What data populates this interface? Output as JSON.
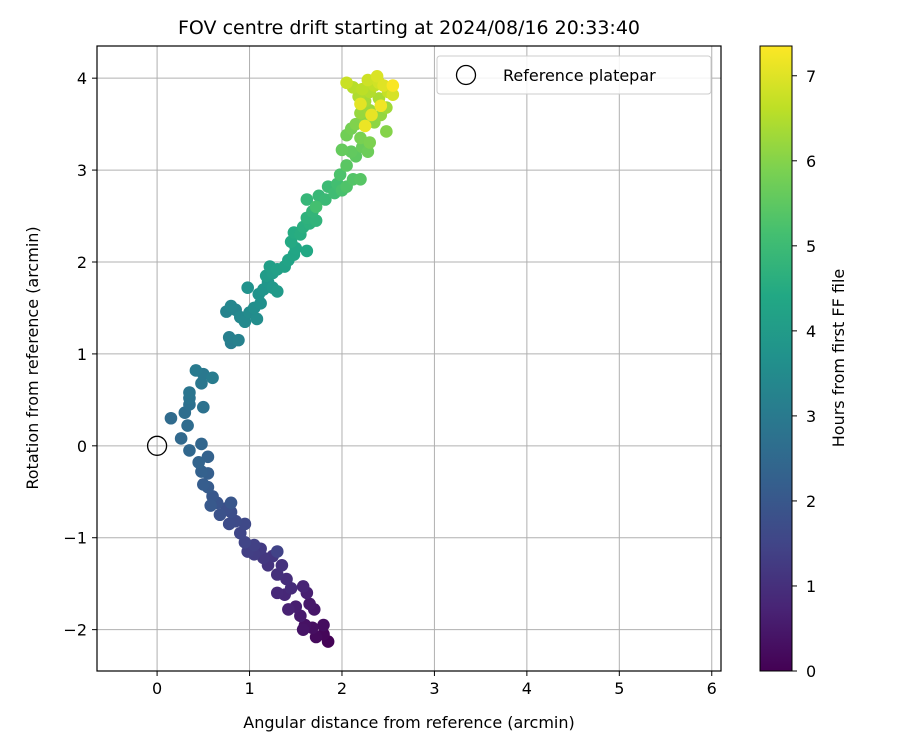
{
  "chart_data": {
    "type": "scatter",
    "title": "FOV centre drift starting at 2024/08/16 20:33:40",
    "xlabel": "Angular distance from reference (arcmin)",
    "ylabel": "Rotation from reference (arcmin)",
    "xlim": [
      -0.65,
      6.1
    ],
    "ylim": [
      -2.45,
      4.35
    ],
    "xticks": [
      0,
      1,
      2,
      3,
      4,
      5,
      6
    ],
    "yticks": [
      -2,
      -1,
      0,
      1,
      2,
      3,
      4
    ],
    "xtick_labels": [
      "0",
      "1",
      "2",
      "3",
      "4",
      "5",
      "6"
    ],
    "ytick_labels": [
      "−2",
      "−1",
      "0",
      "1",
      "2",
      "3",
      "4"
    ],
    "grid": true,
    "legend": {
      "placement": "top-right",
      "entries": [
        {
          "label": "Reference platepar",
          "marker": "open-circle"
        }
      ]
    },
    "reference_point": {
      "x": 0,
      "y": 0
    },
    "colorbar": {
      "label": "Hours from first FF file",
      "colormap": "viridis",
      "range": [
        0,
        7.35
      ],
      "ticks": [
        0,
        1,
        2,
        3,
        4,
        5,
        6,
        7
      ],
      "tick_labels": [
        "0",
        "1",
        "2",
        "3",
        "4",
        "5",
        "6",
        "7"
      ]
    },
    "points": [
      {
        "x": 1.85,
        "y": -2.13,
        "t": 0.05
      },
      {
        "x": 1.8,
        "y": -2.05,
        "t": 0.12
      },
      {
        "x": 1.72,
        "y": -2.08,
        "t": 0.18
      },
      {
        "x": 1.8,
        "y": -1.95,
        "t": 0.25
      },
      {
        "x": 1.68,
        "y": -1.98,
        "t": 0.3
      },
      {
        "x": 1.6,
        "y": -1.95,
        "t": 0.35
      },
      {
        "x": 1.58,
        "y": -2.0,
        "t": 0.4
      },
      {
        "x": 1.7,
        "y": -1.78,
        "t": 0.45
      },
      {
        "x": 1.65,
        "y": -1.72,
        "t": 0.5
      },
      {
        "x": 1.55,
        "y": -1.85,
        "t": 0.55
      },
      {
        "x": 1.5,
        "y": -1.75,
        "t": 0.6
      },
      {
        "x": 1.62,
        "y": -1.6,
        "t": 0.65
      },
      {
        "x": 1.42,
        "y": -1.78,
        "t": 0.7
      },
      {
        "x": 1.58,
        "y": -1.53,
        "t": 0.75
      },
      {
        "x": 1.38,
        "y": -1.62,
        "t": 0.8
      },
      {
        "x": 1.3,
        "y": -1.6,
        "t": 0.85
      },
      {
        "x": 1.45,
        "y": -1.55,
        "t": 0.9
      },
      {
        "x": 1.4,
        "y": -1.45,
        "t": 0.95
      },
      {
        "x": 1.3,
        "y": -1.4,
        "t": 1.0
      },
      {
        "x": 1.35,
        "y": -1.3,
        "t": 1.05
      },
      {
        "x": 1.2,
        "y": -1.3,
        "t": 1.1
      },
      {
        "x": 1.25,
        "y": -1.2,
        "t": 1.15
      },
      {
        "x": 1.15,
        "y": -1.22,
        "t": 1.2
      },
      {
        "x": 1.12,
        "y": -1.12,
        "t": 1.25
      },
      {
        "x": 1.05,
        "y": -1.18,
        "t": 1.3
      },
      {
        "x": 0.98,
        "y": -1.15,
        "t": 1.35
      },
      {
        "x": 1.05,
        "y": -1.08,
        "t": 1.4
      },
      {
        "x": 1.3,
        "y": -1.15,
        "t": 1.45
      },
      {
        "x": 0.95,
        "y": -1.05,
        "t": 1.5
      },
      {
        "x": 0.9,
        "y": -0.95,
        "t": 1.55
      },
      {
        "x": 0.95,
        "y": -0.85,
        "t": 1.6
      },
      {
        "x": 0.85,
        "y": -0.82,
        "t": 1.65
      },
      {
        "x": 0.78,
        "y": -0.85,
        "t": 1.7
      },
      {
        "x": 0.8,
        "y": -0.72,
        "t": 1.75
      },
      {
        "x": 0.75,
        "y": -0.68,
        "t": 1.8
      },
      {
        "x": 0.68,
        "y": -0.75,
        "t": 1.85
      },
      {
        "x": 0.65,
        "y": -0.62,
        "t": 1.9
      },
      {
        "x": 0.8,
        "y": -0.62,
        "t": 1.95
      },
      {
        "x": 0.6,
        "y": -0.55,
        "t": 2.0
      },
      {
        "x": 0.58,
        "y": -0.65,
        "t": 2.05
      },
      {
        "x": 0.55,
        "y": -0.45,
        "t": 2.1
      },
      {
        "x": 0.5,
        "y": -0.42,
        "t": 2.15
      },
      {
        "x": 0.55,
        "y": -0.3,
        "t": 2.2
      },
      {
        "x": 0.48,
        "y": -0.28,
        "t": 2.25
      },
      {
        "x": 0.55,
        "y": -0.12,
        "t": 2.3
      },
      {
        "x": 0.45,
        "y": -0.18,
        "t": 2.35
      },
      {
        "x": 0.48,
        "y": 0.02,
        "t": 2.4
      },
      {
        "x": 0.35,
        "y": -0.05,
        "t": 2.45
      },
      {
        "x": 0.26,
        "y": 0.08,
        "t": 2.5
      },
      {
        "x": 0.15,
        "y": 0.3,
        "t": 2.55
      },
      {
        "x": 0.33,
        "y": 0.22,
        "t": 2.6
      },
      {
        "x": 0.3,
        "y": 0.36,
        "t": 2.65
      },
      {
        "x": 0.35,
        "y": 0.45,
        "t": 2.7
      },
      {
        "x": 0.5,
        "y": 0.42,
        "t": 2.75
      },
      {
        "x": 0.35,
        "y": 0.52,
        "t": 2.8
      },
      {
        "x": 0.35,
        "y": 0.58,
        "t": 2.85
      },
      {
        "x": 0.48,
        "y": 0.68,
        "t": 2.9
      },
      {
        "x": 0.5,
        "y": 0.78,
        "t": 2.95
      },
      {
        "x": 0.42,
        "y": 0.82,
        "t": 3.0
      },
      {
        "x": 0.6,
        "y": 0.74,
        "t": 3.05
      },
      {
        "x": 0.8,
        "y": 1.12,
        "t": 3.1
      },
      {
        "x": 0.78,
        "y": 1.18,
        "t": 3.15
      },
      {
        "x": 0.88,
        "y": 1.15,
        "t": 3.2
      },
      {
        "x": 0.75,
        "y": 1.46,
        "t": 3.25
      },
      {
        "x": 0.85,
        "y": 1.48,
        "t": 3.3
      },
      {
        "x": 0.8,
        "y": 1.52,
        "t": 3.35
      },
      {
        "x": 0.9,
        "y": 1.4,
        "t": 3.4
      },
      {
        "x": 0.95,
        "y": 1.35,
        "t": 3.45
      },
      {
        "x": 1.0,
        "y": 1.45,
        "t": 3.5
      },
      {
        "x": 1.08,
        "y": 1.38,
        "t": 3.55
      },
      {
        "x": 1.05,
        "y": 1.5,
        "t": 3.6
      },
      {
        "x": 1.12,
        "y": 1.55,
        "t": 3.65
      },
      {
        "x": 0.98,
        "y": 1.72,
        "t": 3.7
      },
      {
        "x": 1.1,
        "y": 1.65,
        "t": 3.75
      },
      {
        "x": 1.15,
        "y": 1.7,
        "t": 3.8
      },
      {
        "x": 1.2,
        "y": 1.78,
        "t": 3.85
      },
      {
        "x": 1.25,
        "y": 1.72,
        "t": 3.9
      },
      {
        "x": 1.3,
        "y": 1.68,
        "t": 3.95
      },
      {
        "x": 1.18,
        "y": 1.85,
        "t": 4.0
      },
      {
        "x": 1.25,
        "y": 1.88,
        "t": 4.05
      },
      {
        "x": 1.22,
        "y": 1.95,
        "t": 4.1
      },
      {
        "x": 1.3,
        "y": 1.92,
        "t": 4.15
      },
      {
        "x": 1.38,
        "y": 1.95,
        "t": 4.2
      },
      {
        "x": 1.42,
        "y": 2.02,
        "t": 4.25
      },
      {
        "x": 1.48,
        "y": 2.08,
        "t": 4.3
      },
      {
        "x": 1.5,
        "y": 2.15,
        "t": 4.35
      },
      {
        "x": 1.62,
        "y": 2.12,
        "t": 4.4
      },
      {
        "x": 1.45,
        "y": 2.22,
        "t": 4.45
      },
      {
        "x": 1.48,
        "y": 2.32,
        "t": 4.5
      },
      {
        "x": 1.55,
        "y": 2.3,
        "t": 4.55
      },
      {
        "x": 1.58,
        "y": 2.38,
        "t": 4.6
      },
      {
        "x": 1.65,
        "y": 2.42,
        "t": 4.65
      },
      {
        "x": 1.62,
        "y": 2.48,
        "t": 4.7
      },
      {
        "x": 1.72,
        "y": 2.45,
        "t": 4.75
      },
      {
        "x": 1.68,
        "y": 2.55,
        "t": 4.8
      },
      {
        "x": 1.62,
        "y": 2.68,
        "t": 4.85
      },
      {
        "x": 1.75,
        "y": 2.72,
        "t": 4.9
      },
      {
        "x": 1.82,
        "y": 2.68,
        "t": 4.95
      },
      {
        "x": 1.85,
        "y": 2.82,
        "t": 5.0
      },
      {
        "x": 1.92,
        "y": 2.75,
        "t": 5.05
      },
      {
        "x": 1.95,
        "y": 2.85,
        "t": 5.1
      },
      {
        "x": 1.72,
        "y": 2.6,
        "t": 5.15
      },
      {
        "x": 2.0,
        "y": 2.78,
        "t": 5.2
      },
      {
        "x": 1.98,
        "y": 2.95,
        "t": 5.25
      },
      {
        "x": 2.05,
        "y": 2.82,
        "t": 5.3
      },
      {
        "x": 2.12,
        "y": 2.9,
        "t": 5.35
      },
      {
        "x": 2.2,
        "y": 2.9,
        "t": 5.4
      },
      {
        "x": 2.05,
        "y": 3.05,
        "t": 5.45
      },
      {
        "x": 2.15,
        "y": 3.15,
        "t": 5.5
      },
      {
        "x": 2.1,
        "y": 3.2,
        "t": 5.55
      },
      {
        "x": 2.0,
        "y": 3.22,
        "t": 5.6
      },
      {
        "x": 2.22,
        "y": 3.25,
        "t": 5.65
      },
      {
        "x": 2.28,
        "y": 3.2,
        "t": 5.7
      },
      {
        "x": 2.05,
        "y": 3.38,
        "t": 5.75
      },
      {
        "x": 2.1,
        "y": 3.45,
        "t": 5.8
      },
      {
        "x": 2.2,
        "y": 3.35,
        "t": 5.85
      },
      {
        "x": 2.3,
        "y": 3.3,
        "t": 5.9
      },
      {
        "x": 2.15,
        "y": 3.5,
        "t": 5.95
      },
      {
        "x": 2.48,
        "y": 3.42,
        "t": 6.0
      },
      {
        "x": 2.25,
        "y": 3.55,
        "t": 6.05
      },
      {
        "x": 2.35,
        "y": 3.52,
        "t": 6.1
      },
      {
        "x": 2.42,
        "y": 3.6,
        "t": 6.15
      },
      {
        "x": 2.2,
        "y": 3.62,
        "t": 6.2
      },
      {
        "x": 2.3,
        "y": 3.65,
        "t": 6.25
      },
      {
        "x": 2.48,
        "y": 3.68,
        "t": 6.3
      },
      {
        "x": 2.25,
        "y": 3.75,
        "t": 6.35
      },
      {
        "x": 2.4,
        "y": 3.78,
        "t": 6.4
      },
      {
        "x": 2.18,
        "y": 3.8,
        "t": 6.45
      },
      {
        "x": 2.3,
        "y": 3.85,
        "t": 6.5
      },
      {
        "x": 2.12,
        "y": 3.9,
        "t": 6.55
      },
      {
        "x": 2.22,
        "y": 3.88,
        "t": 6.6
      },
      {
        "x": 2.35,
        "y": 3.92,
        "t": 6.65
      },
      {
        "x": 2.5,
        "y": 3.85,
        "t": 6.7
      },
      {
        "x": 2.05,
        "y": 3.95,
        "t": 6.75
      },
      {
        "x": 2.28,
        "y": 3.98,
        "t": 6.8
      },
      {
        "x": 2.4,
        "y": 3.95,
        "t": 6.85
      },
      {
        "x": 2.55,
        "y": 3.82,
        "t": 6.9
      },
      {
        "x": 2.38,
        "y": 4.02,
        "t": 6.95
      },
      {
        "x": 2.45,
        "y": 3.92,
        "t": 7.0
      },
      {
        "x": 2.2,
        "y": 3.72,
        "t": 7.05
      },
      {
        "x": 2.32,
        "y": 3.6,
        "t": 7.1
      },
      {
        "x": 2.25,
        "y": 3.48,
        "t": 7.15
      },
      {
        "x": 2.42,
        "y": 3.7,
        "t": 7.2
      },
      {
        "x": 2.55,
        "y": 3.92,
        "t": 7.3
      }
    ]
  }
}
